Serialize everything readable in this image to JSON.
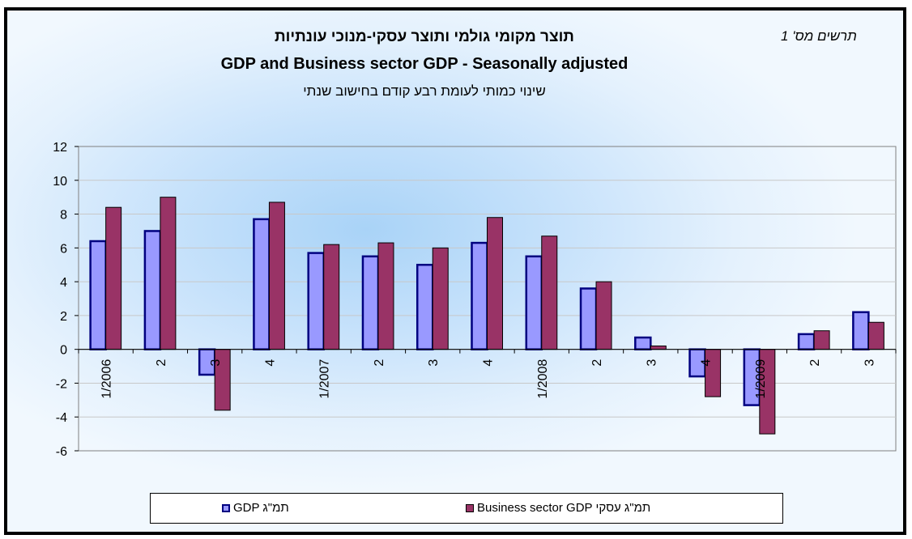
{
  "figure_label": "תרשים מס' 1",
  "chart_data": {
    "type": "bar",
    "title": "תוצר מקומי גולמי ותוצר עסקי-מנוכי עונתיות",
    "title_en": "GDP and Business sector GDP - Seasonally adjusted",
    "subtitle": "שינוי כמותי לעומת רבע קודם בחישוב שנתי",
    "categories": [
      "1/2006",
      "2",
      "3",
      "4",
      "1/2007",
      "2",
      "3",
      "4",
      "1/2008",
      "2",
      "3",
      "4",
      "1/2009",
      "2",
      "3"
    ],
    "series": [
      {
        "name": "GDP   תמ\"ג",
        "color": "#9999ff",
        "stroke": "#000080",
        "values": [
          6.4,
          7.0,
          -1.5,
          7.7,
          5.7,
          5.5,
          5.0,
          6.3,
          5.5,
          3.6,
          0.7,
          -1.6,
          -3.3,
          0.9,
          2.2
        ]
      },
      {
        "name": "Business sector GDP תמ\"ג עסקי",
        "color": "#993366",
        "stroke": "#993366",
        "values": [
          8.4,
          9.0,
          -3.6,
          8.7,
          6.2,
          6.3,
          6.0,
          7.8,
          6.7,
          4.0,
          0.2,
          -2.8,
          -5.0,
          1.1,
          1.6
        ]
      }
    ],
    "ylim": [
      -6,
      12
    ],
    "yticks": [
      -6,
      -4,
      -2,
      0,
      2,
      4,
      6,
      8,
      10,
      12
    ],
    "grid": true,
    "legend_position": "bottom"
  },
  "legend": {
    "gdp_label": "GDP   תמ\"ג",
    "business_label": "Business sector GDP תמ\"ג עסקי"
  }
}
